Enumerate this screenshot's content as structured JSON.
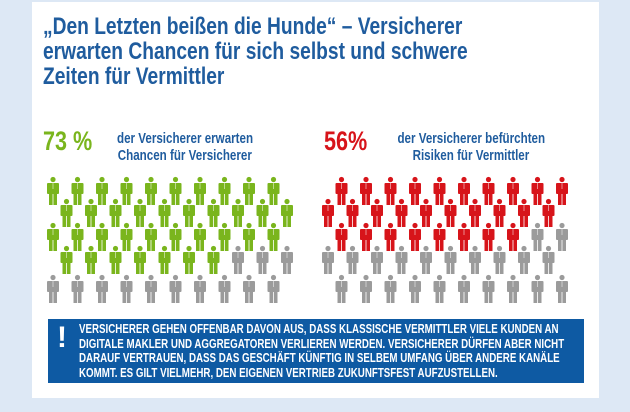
{
  "title": [
    "„Den Letzten beißen die Hunde“ – Versicherer",
    "erwarten Chancen für sich selbst und schwere",
    "Zeiten für Vermittler"
  ],
  "colors": {
    "title": "#1f5c9e",
    "green": "#7ab51d",
    "red": "#d7141a",
    "gray": "#9b9b9b",
    "note_bg": "#0e5aa3",
    "page_bg": "#dde8f5"
  },
  "chart_data": [
    {
      "type": "pictogram",
      "value_label": "73 %",
      "value": 73,
      "description": [
        "der Versicherer erwarten",
        "Chancen für Versicherer"
      ],
      "icon": "person-icon",
      "icons_total": 50,
      "icons_highlighted": 37,
      "highlight_color": "#7ab51d",
      "rest_color": "#9b9b9b"
    },
    {
      "type": "pictogram",
      "value_label": "56%",
      "value": 56,
      "description": [
        "der Versicherer befürchten",
        "Risiken für Vermittler"
      ],
      "icon": "person-icon",
      "icons_total": 50,
      "icons_highlighted": 28,
      "highlight_color": "#d7141a",
      "rest_color": "#9b9b9b"
    }
  ],
  "note": {
    "icon": "exclamation-icon",
    "lines": [
      "VERSICHERER GEHEN OFFENBAR DAVON AUS, DASS KLASSISCHE VERMITTLER VIELE KUNDEN AN",
      "DIGITALE MAKLER UND AGGREGATOREN VERLIEREN WERDEN. VERSICHERER DÜRFEN ABER NICHT",
      "DARAUF VERTRAUEN, DASS DAS GESCHÄFT KÜNFTIG IN SELBEM UMFANG ÜBER ANDERE KANÄLE",
      "KOMMT. ES GILT VIELMEHR, DEN EIGENEN VERTRIEB ZUKUNFTSFEST AUFZUSTELLEN."
    ]
  }
}
